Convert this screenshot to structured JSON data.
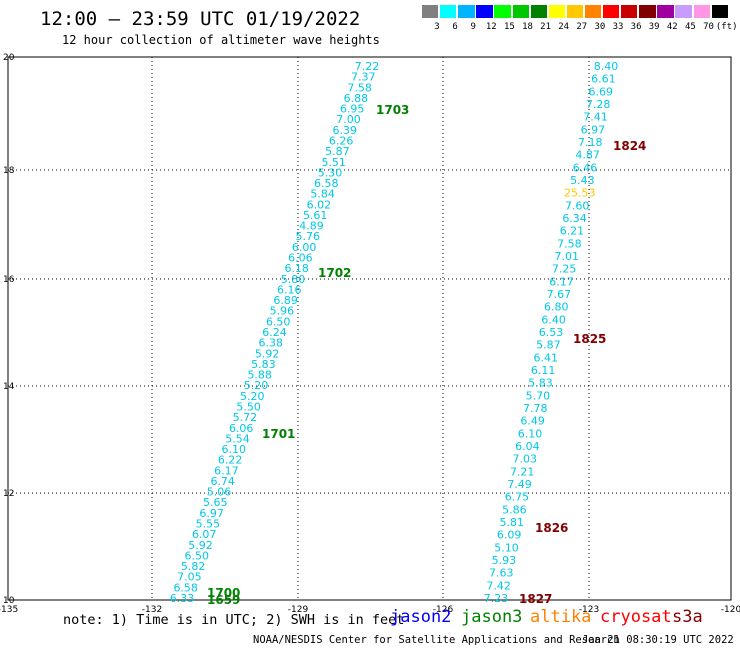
{
  "header": {
    "title": "12:00 – 23:59 UTC 01/19/2022",
    "subtitle": "12 hour collection of altimeter wave heights"
  },
  "color_scale": {
    "unit_label": "(ft)",
    "bins": [
      {
        "label": "3",
        "color": "#808080"
      },
      {
        "label": "6",
        "color": "#00ffff"
      },
      {
        "label": "9",
        "color": "#00b4ff"
      },
      {
        "label": "12",
        "color": "#0000ff"
      },
      {
        "label": "15",
        "color": "#00ff00"
      },
      {
        "label": "18",
        "color": "#00c800"
      },
      {
        "label": "21",
        "color": "#008200"
      },
      {
        "label": "24",
        "color": "#ffff00"
      },
      {
        "label": "27",
        "color": "#ffc800"
      },
      {
        "label": "30",
        "color": "#ff8200"
      },
      {
        "label": "33",
        "color": "#ff0000"
      },
      {
        "label": "36",
        "color": "#c80000"
      },
      {
        "label": "39",
        "color": "#820000"
      },
      {
        "label": "42",
        "color": "#a000a0"
      },
      {
        "label": "45",
        "color": "#c89bff"
      },
      {
        "label": "70",
        "color": "#ff96e6"
      },
      {
        "label": "",
        "color": "#000000"
      }
    ]
  },
  "map": {
    "lon_ticks": [
      "-135",
      "-132",
      "-129",
      "-126",
      "-123",
      "-120"
    ],
    "lat_ticks": [
      "10",
      "12",
      "14",
      "16",
      "18",
      "20"
    ],
    "left_track": {
      "values": [
        "7.22",
        "7.37",
        "7.58",
        "6.88",
        "6.95",
        "7.00",
        "6.39",
        "6.26",
        "5.87",
        "5.51",
        "5.30",
        "6.58",
        "5.84",
        "6.02",
        "5.61",
        "4.89",
        "5.76",
        "6.00",
        "6.06",
        "6.18",
        "5.80",
        "6.16",
        "6.89",
        "5.96",
        "6.50",
        "6.24",
        "6.38",
        "5.92",
        "5.83",
        "5.88",
        "5.20",
        "5.20",
        "5.50",
        "5.72",
        "6.06",
        "5.54",
        "6.10",
        "6.22",
        "6.17",
        "6.74",
        "5.06",
        "5.65",
        "6.97",
        "5.55",
        "6.07",
        "5.92",
        "6.50",
        "5.82",
        "7.05",
        "6.58",
        "6.33"
      ],
      "times": [
        {
          "label": "1703",
          "color": "#008200"
        },
        {
          "label": "1702",
          "color": "#008200"
        },
        {
          "label": "1701",
          "color": "#008200"
        },
        {
          "label": "1700",
          "color": "#008200"
        },
        {
          "label": "1659",
          "color": "#008200"
        }
      ]
    },
    "right_track": {
      "values": [
        "8.40",
        "6.61",
        "6.69",
        "7.28",
        "7.41",
        "6.97",
        "7.18",
        "4.87",
        "6.46",
        "5.43",
        "25.53",
        "7.60",
        "6.34",
        "6.21",
        "7.58",
        "7.01",
        "7.25",
        "6.17",
        "7.67",
        "6.80",
        "6.40",
        "6.53",
        "5.87",
        "6.41",
        "6.11",
        "5.83",
        "5.70",
        "7.78",
        "6.49",
        "6.10",
        "6.04",
        "7.03",
        "7.21",
        "7.49",
        "6.75",
        "5.86",
        "5.81",
        "6.09",
        "5.10",
        "5.93",
        "7.63",
        "7.42",
        "7.23"
      ],
      "value_colors": {
        "10": "#ffc800"
      },
      "times": [
        {
          "label": "1824",
          "color": "#820000"
        },
        {
          "label": "1825",
          "color": "#820000"
        },
        {
          "label": "1826",
          "color": "#820000"
        },
        {
          "label": "1827",
          "color": "#820000"
        }
      ]
    }
  },
  "note": "note: 1) Time is in UTC; 2) SWH is in feet",
  "legend": [
    {
      "label": "jason2",
      "color": "#0000ff"
    },
    {
      "label": "jason3",
      "color": "#008200"
    },
    {
      "label": "altika",
      "color": "#ff8200"
    },
    {
      "label": "cryosat",
      "color": "#ff0000"
    },
    {
      "label": "s3a",
      "color": "#820000"
    }
  ],
  "footer": "NOAA/NESDIS Center for Satellite Applications and Research",
  "timestamp": "Jan 21 08:30:19 UTC 2022"
}
